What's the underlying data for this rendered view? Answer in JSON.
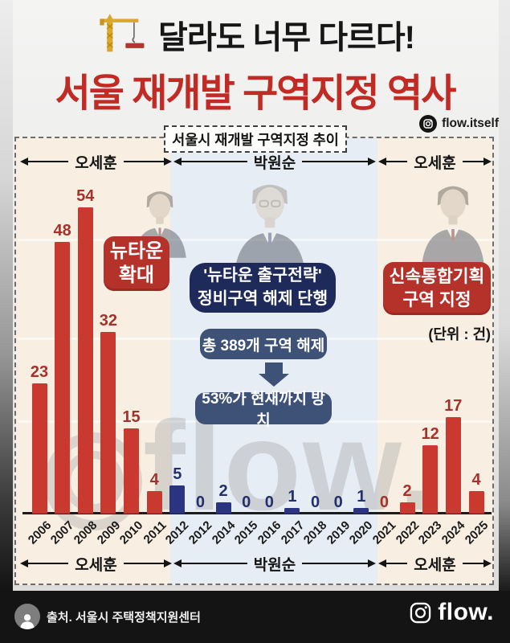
{
  "header": {
    "title": "달라도 너무 다르다!",
    "subtitle": "서울 재개발 구역지정 역사",
    "instagram_handle": "flow.itself"
  },
  "chart": {
    "title": "서울시 재개발 구역지정 추이",
    "unit_label": "(단위 : 건)",
    "sections": [
      {
        "label": "오세훈"
      },
      {
        "label": "박원순"
      },
      {
        "label": "오세훈"
      }
    ],
    "annotations": {
      "newtown_line1": "뉴타운",
      "newtown_line2": "확대",
      "exit_line1": "'뉴타운 출구전략'",
      "exit_line2": "정비구역 해제 단행",
      "total": "총 389개 구역 해제",
      "result": "53%가 현재까지 방치",
      "fast_line1": "신속통합기획",
      "fast_line2": "구역 지정"
    },
    "chart_data": {
      "type": "bar",
      "title": "서울시 재개발 구역지정 추이",
      "unit": "건",
      "categories": [
        "2006",
        "2007",
        "2008",
        "2009",
        "2010",
        "2011",
        "2012",
        "2012",
        "2014",
        "2015",
        "2016",
        "2017",
        "2018",
        "2019",
        "2020",
        "2021",
        "2022",
        "2023",
        "2024",
        "2025"
      ],
      "values": [
        23,
        48,
        54,
        32,
        15,
        4,
        5,
        0,
        2,
        0,
        0,
        1,
        0,
        0,
        1,
        0,
        2,
        12,
        17,
        4
      ],
      "ylim": [
        0,
        60
      ],
      "grid": false,
      "legend": "none",
      "groups": [
        {
          "label": "오세훈",
          "from": 0,
          "to": 5,
          "key": "red"
        },
        {
          "label": "박원순",
          "from": 6,
          "to": 14,
          "key": "navy"
        },
        {
          "label": "오세훈",
          "from": 15,
          "to": 19,
          "key": "red"
        }
      ],
      "palette": {
        "red": {
          "bar": "#c9392f",
          "label": "#a5322a"
        },
        "navy": {
          "bar": "#2b3481",
          "label": "#23306e"
        }
      }
    }
  },
  "watermark": {
    "text": "flow."
  },
  "footer": {
    "source": "출처. 서울시 주택정책지원센터",
    "logo_text": "flow."
  }
}
